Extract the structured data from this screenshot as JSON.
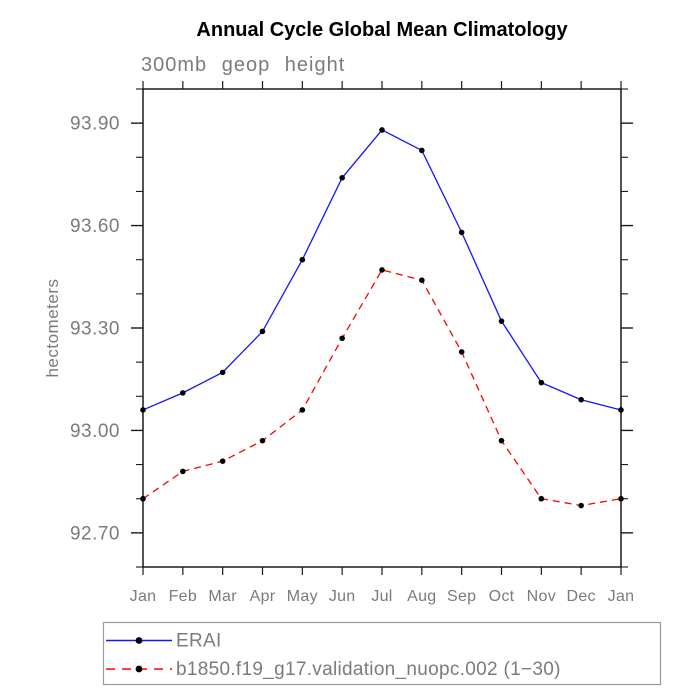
{
  "chart_data": {
    "type": "line",
    "title": "Annual Cycle Global Mean Climatology",
    "subtitle": "300mb geop height",
    "ylabel": "hectometers",
    "xlabel": "",
    "categories": [
      "Jan",
      "Feb",
      "Mar",
      "Apr",
      "May",
      "Jun",
      "Jul",
      "Aug",
      "Sep",
      "Oct",
      "Nov",
      "Dec",
      "Jan"
    ],
    "series": [
      {
        "name": "ERAI",
        "color": "#1414ff",
        "line_style": "solid",
        "marker": "filled-circle",
        "values": [
          93.06,
          93.11,
          93.17,
          93.29,
          93.5,
          93.74,
          93.88,
          93.82,
          93.58,
          93.32,
          93.14,
          93.09,
          93.06
        ]
      },
      {
        "name": "b1850.f19_g17.validation_nuopc.002 (1−30)",
        "color": "#ff0000",
        "line_style": "dashed",
        "marker": "filled-circle",
        "values": [
          92.8,
          92.88,
          92.91,
          92.97,
          93.06,
          93.27,
          93.47,
          93.44,
          93.23,
          92.97,
          92.8,
          92.78,
          92.8
        ]
      }
    ],
    "ylim": [
      92.6,
      94.0
    ],
    "yticks_major": [
      93.9,
      93.6,
      93.3,
      93.0,
      92.7
    ],
    "ytick_labels": [
      "93.90",
      "93.60",
      "93.30",
      "93.00",
      "92.70"
    ],
    "ytick_minor_step": 0.1,
    "grid": false,
    "legend_position": "bottom",
    "colors": {
      "marker": "#000000",
      "text_gray": "#7b7b7b",
      "axis": "#1a1a1a",
      "legend_border": "#999999",
      "background": "#ffffff",
      "title": "#000000"
    }
  }
}
